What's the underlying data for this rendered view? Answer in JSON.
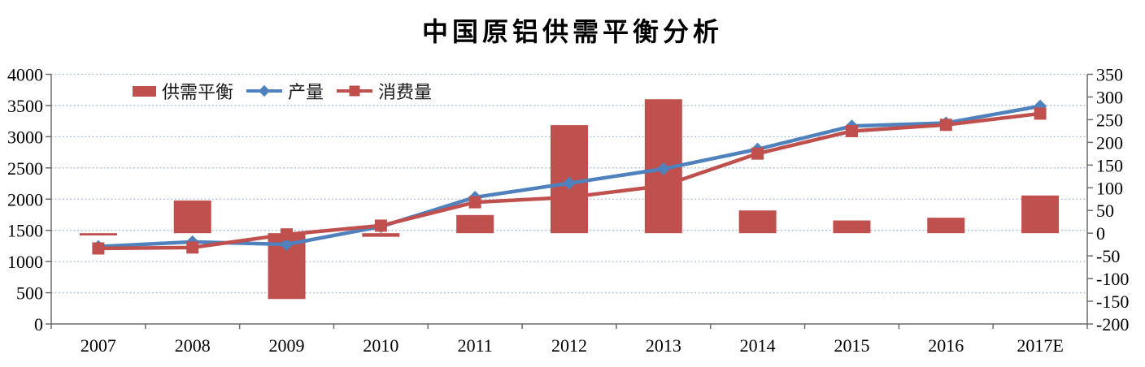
{
  "chart_data": {
    "type": "combo-bar-line",
    "title": "中国原铝供需平衡分析",
    "categories": [
      "2007",
      "2008",
      "2009",
      "2010",
      "2011",
      "2012",
      "2013",
      "2014",
      "2015",
      "2016",
      "2017E"
    ],
    "series": [
      {
        "name": "供需平衡",
        "type": "bar",
        "axis": "right",
        "color": "#C0504D",
        "values": [
          -5,
          72,
          -145,
          -8,
          40,
          238,
          295,
          50,
          28,
          34,
          83
        ]
      },
      {
        "name": "产量",
        "type": "line",
        "axis": "left",
        "marker": "diamond",
        "color": "#4F81BD",
        "values": [
          1240,
          1315,
          1275,
          1560,
          2030,
          2255,
          2485,
          2800,
          3170,
          3220,
          3490
        ]
      },
      {
        "name": "消费量",
        "type": "line",
        "axis": "left",
        "marker": "square",
        "color": "#C0504D",
        "values": [
          1210,
          1225,
          1435,
          1575,
          1950,
          2030,
          2215,
          2730,
          3090,
          3190,
          3370
        ]
      }
    ],
    "left_axis": {
      "min": 0,
      "max": 4000,
      "step": 500,
      "labels": [
        "0",
        "500",
        "1000",
        "1500",
        "2000",
        "2500",
        "3000",
        "3500",
        "4000"
      ]
    },
    "right_axis": {
      "min": -200,
      "max": 350,
      "step": 50,
      "labels": [
        "-200",
        "-150",
        "-100",
        "-50",
        "0",
        "50",
        "100",
        "150",
        "200",
        "250",
        "300",
        "350"
      ]
    },
    "grid": {
      "horizontal": true,
      "style": "dotted",
      "color": "#A3B8D6"
    },
    "legend_position": "top-inside",
    "axis_color": "#6b6b6b",
    "text_color": "#000000",
    "background": "#FFFFFF"
  }
}
